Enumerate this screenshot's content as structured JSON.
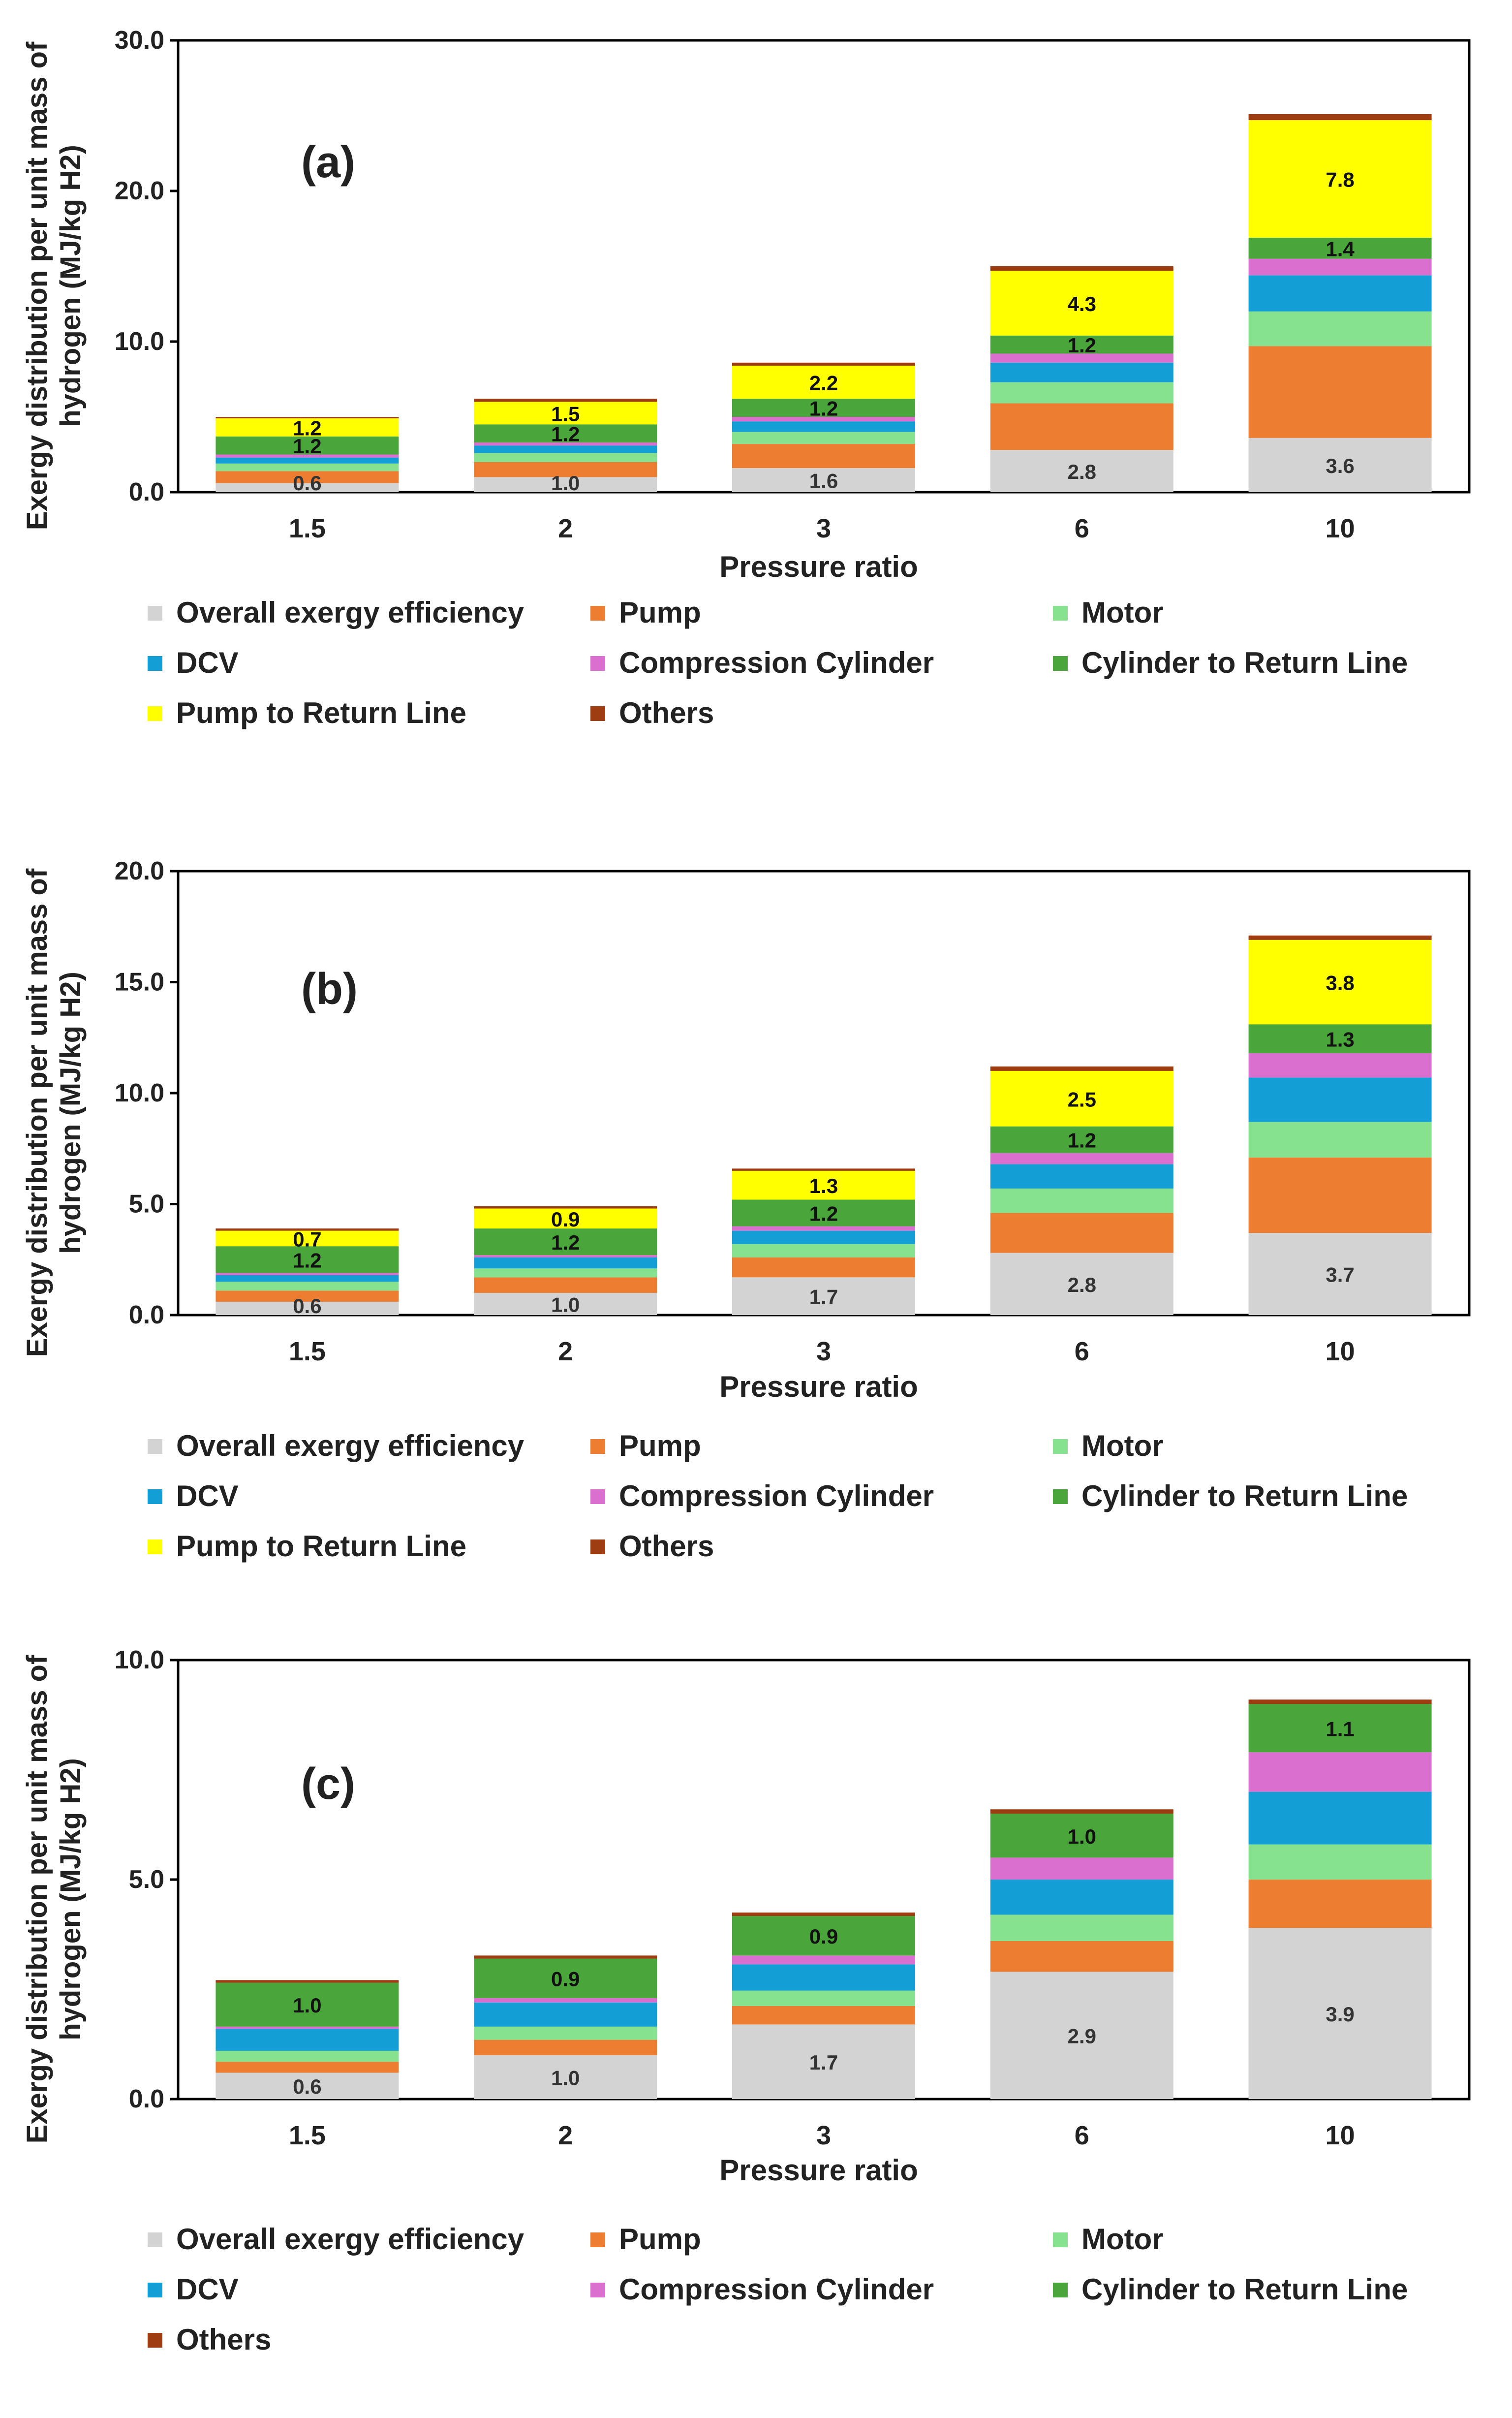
{
  "colors": {
    "Overall exergy efficiency": "#d3d3d3",
    "Pump": "#ed7d31",
    "Motor": "#86e28f",
    "DCV": "#139fd6",
    "Compression Cylinder": "#db6fcf",
    "Cylinder to Return Line": "#4aa63a",
    "Pump to Return Line": "#ffff00",
    "Others": "#9e3c12"
  },
  "chart_data": [
    {
      "type": "bar",
      "stacked": true,
      "panel_label": "(a)",
      "xlabel": "Pressure ratio",
      "ylabel": [
        "Exergy distribution per unit mass of",
        "hydrogen (MJ/kg H2)"
      ],
      "ylim": [
        0,
        30
      ],
      "yticks": [
        "0.0",
        "10.0",
        "20.0",
        "30.0"
      ],
      "categories": [
        "1.5",
        "2",
        "3",
        "6",
        "10"
      ],
      "series": [
        {
          "name": "Overall exergy efficiency",
          "values": [
            0.6,
            1.0,
            1.6,
            2.8,
            3.6
          ]
        },
        {
          "name": "Pump",
          "values": [
            0.8,
            1.0,
            1.6,
            3.1,
            6.1
          ]
        },
        {
          "name": "Motor",
          "values": [
            0.5,
            0.6,
            0.8,
            1.4,
            2.3
          ]
        },
        {
          "name": "DCV",
          "values": [
            0.4,
            0.5,
            0.7,
            1.3,
            2.4
          ]
        },
        {
          "name": "Compression Cylinder",
          "values": [
            0.2,
            0.2,
            0.3,
            0.6,
            1.1
          ]
        },
        {
          "name": "Cylinder to Return Line",
          "values": [
            1.2,
            1.2,
            1.2,
            1.2,
            1.4
          ]
        },
        {
          "name": "Pump to Return Line",
          "values": [
            1.2,
            1.5,
            2.2,
            4.3,
            7.8
          ]
        },
        {
          "name": "Others",
          "values": [
            0.1,
            0.2,
            0.2,
            0.3,
            0.4
          ]
        }
      ],
      "data_labels": [
        {
          "series": "Overall exergy efficiency",
          "values": [
            "0.6",
            "1.0",
            "1.6",
            "2.8",
            "3.6"
          ]
        },
        {
          "series": "Cylinder to Return Line",
          "values": [
            "1.2",
            "1.2",
            "1.2",
            "1.2",
            "1.4"
          ]
        },
        {
          "series": "Pump to Return Line",
          "values": [
            "1.2",
            "1.5",
            "2.2",
            "4.3",
            "7.8"
          ]
        }
      ],
      "legend": [
        "Overall exergy efficiency",
        "Pump",
        "Motor",
        "DCV",
        "Compression Cylinder",
        "Cylinder to Return Line",
        "Pump to Return Line",
        "Others"
      ]
    },
    {
      "type": "bar",
      "stacked": true,
      "panel_label": "(b)",
      "xlabel": "Pressure ratio",
      "ylabel": [
        "Exergy distribution per unit mass of",
        "hydrogen (MJ/kg H2)"
      ],
      "ylim": [
        0,
        20
      ],
      "yticks": [
        "0.0",
        "5.0",
        "10.0",
        "15.0",
        "20.0"
      ],
      "categories": [
        "1.5",
        "2",
        "3",
        "6",
        "10"
      ],
      "series": [
        {
          "name": "Overall exergy efficiency",
          "values": [
            0.6,
            1.0,
            1.7,
            2.8,
            3.7
          ]
        },
        {
          "name": "Pump",
          "values": [
            0.5,
            0.7,
            0.9,
            1.8,
            3.4
          ]
        },
        {
          "name": "Motor",
          "values": [
            0.4,
            0.4,
            0.6,
            1.1,
            1.6
          ]
        },
        {
          "name": "DCV",
          "values": [
            0.3,
            0.5,
            0.6,
            1.1,
            2.0
          ]
        },
        {
          "name": "Compression Cylinder",
          "values": [
            0.1,
            0.1,
            0.2,
            0.5,
            1.1
          ]
        },
        {
          "name": "Cylinder to Return Line",
          "values": [
            1.2,
            1.2,
            1.2,
            1.2,
            1.3
          ]
        },
        {
          "name": "Pump to Return Line",
          "values": [
            0.7,
            0.9,
            1.3,
            2.5,
            3.8
          ]
        },
        {
          "name": "Others",
          "values": [
            0.1,
            0.1,
            0.1,
            0.2,
            0.2
          ]
        }
      ],
      "data_labels": [
        {
          "series": "Overall exergy efficiency",
          "values": [
            "0.6",
            "1.0",
            "1.7",
            "2.8",
            "3.7"
          ]
        },
        {
          "series": "Cylinder to Return Line",
          "values": [
            "1.2",
            "1.2",
            "1.2",
            "1.2",
            "1.3"
          ]
        },
        {
          "series": "Pump to Return Line",
          "values": [
            "0.7",
            "0.9",
            "1.3",
            "2.5",
            "3.8"
          ]
        }
      ],
      "legend": [
        "Overall exergy efficiency",
        "Pump",
        "Motor",
        "DCV",
        "Compression Cylinder",
        "Cylinder to Return Line",
        "Pump to Return Line",
        "Others"
      ]
    },
    {
      "type": "bar",
      "stacked": true,
      "panel_label": "(c)",
      "xlabel": "Pressure ratio",
      "ylabel": [
        "Exergy distribution per unit mass of",
        "hydrogen (MJ/kg H2)"
      ],
      "ylim": [
        0,
        10
      ],
      "yticks": [
        "0.0",
        "5.0",
        "10.0"
      ],
      "categories": [
        "1.5",
        "2",
        "3",
        "6",
        "10"
      ],
      "series": [
        {
          "name": "Overall exergy efficiency",
          "values": [
            0.6,
            1.0,
            1.7,
            2.9,
            3.9
          ]
        },
        {
          "name": "Pump",
          "values": [
            0.25,
            0.35,
            0.42,
            0.7,
            1.1
          ]
        },
        {
          "name": "Motor",
          "values": [
            0.25,
            0.3,
            0.35,
            0.6,
            0.8
          ]
        },
        {
          "name": "DCV",
          "values": [
            0.5,
            0.55,
            0.6,
            0.8,
            1.2
          ]
        },
        {
          "name": "Compression Cylinder",
          "values": [
            0.05,
            0.1,
            0.2,
            0.5,
            0.9
          ]
        },
        {
          "name": "Cylinder to Return Line",
          "values": [
            1.0,
            0.9,
            0.9,
            1.0,
            1.1
          ]
        },
        {
          "name": "Others",
          "values": [
            0.06,
            0.07,
            0.08,
            0.1,
            0.1
          ]
        }
      ],
      "data_labels": [
        {
          "series": "Overall exergy efficiency",
          "values": [
            "0.6",
            "1.0",
            "1.7",
            "2.9",
            "3.9"
          ]
        },
        {
          "series": "Cylinder to Return Line",
          "values": [
            "1.0",
            "0.9",
            "0.9",
            "1.0",
            "1.1"
          ]
        }
      ],
      "legend": [
        "Overall exergy efficiency",
        "Pump",
        "Motor",
        "DCV",
        "Compression Cylinder",
        "Cylinder to Return Line",
        "Others"
      ]
    }
  ]
}
